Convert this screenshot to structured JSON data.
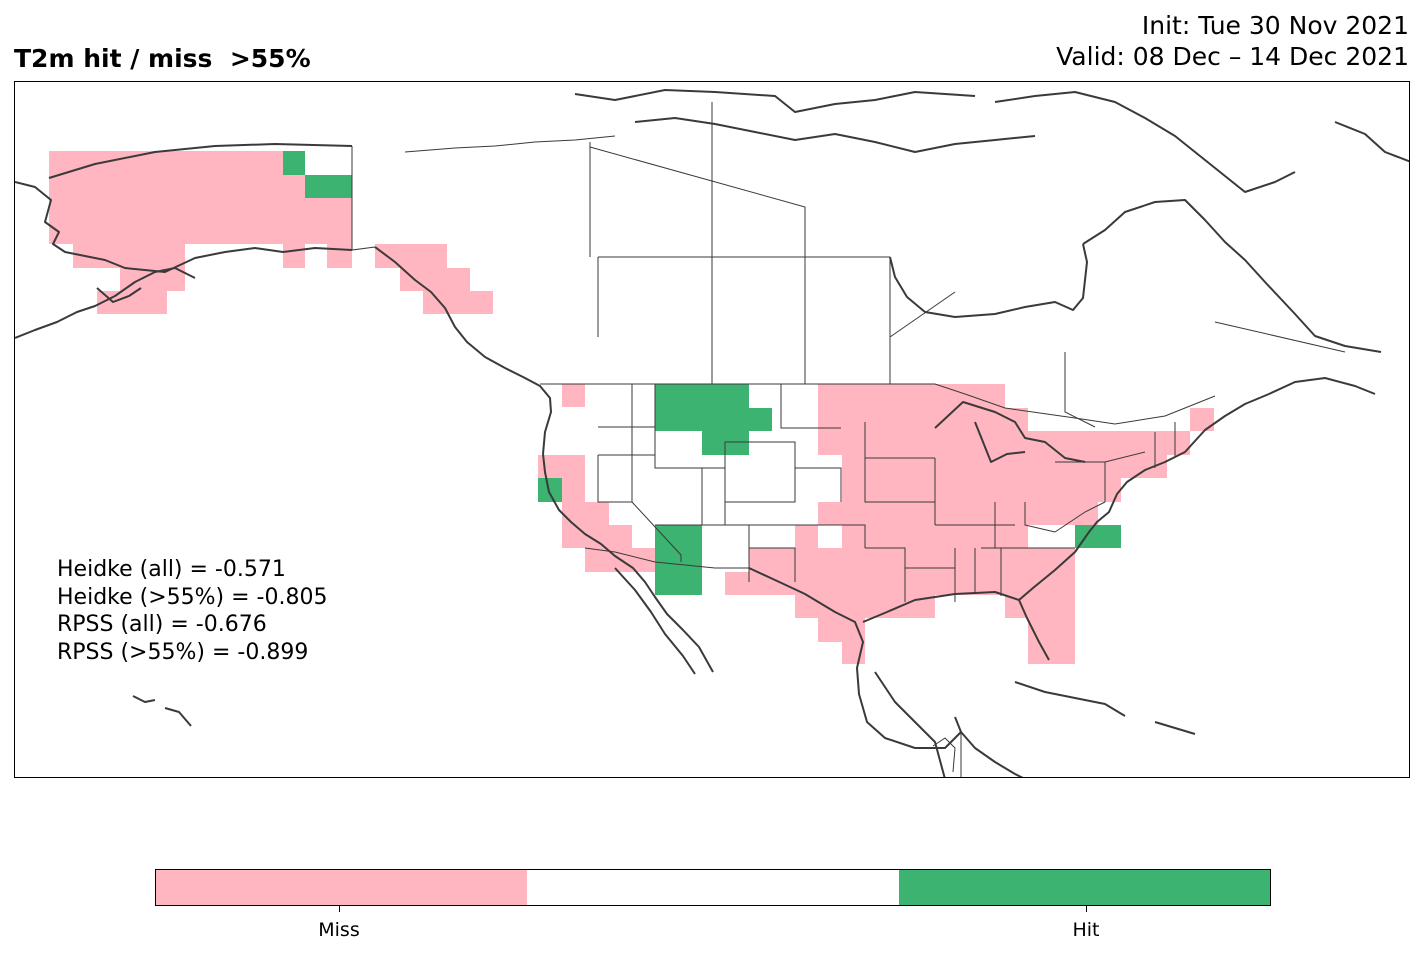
{
  "title": "T2m hit / miss  >55%",
  "init_line": "Init: Tue 30 Nov 2021",
  "valid_line": "Valid: 08 Dec – 14 Dec 2021",
  "stats": [
    "Heidke (all) = -0.571",
    "Heidke (>55%) = -0.805",
    "RPSS (all) = -0.676",
    "RPSS (>55%) = -0.899"
  ],
  "legend": {
    "miss_label": "Miss",
    "hit_label": "Hit",
    "colors": {
      "miss": "#FFB6C1",
      "neutral": "#FFFFFF",
      "hit": "#3CB371"
    }
  },
  "map_colors": {
    "coast": "#3a3a3a",
    "border": "#3a3a3a"
  }
}
